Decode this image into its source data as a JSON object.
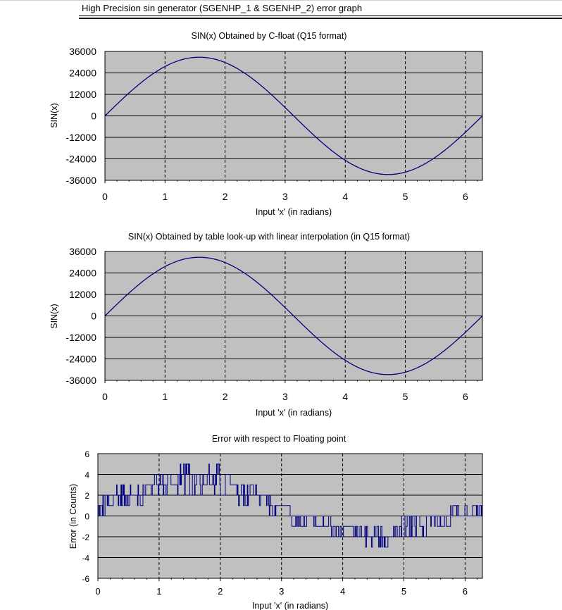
{
  "document": {
    "title": "High Precision sin generator (SGENHP_1 & SGENHP_2) error graph"
  },
  "colors": {
    "plot_background": "#c0c0c0",
    "series_line": "#000080",
    "grid_line": "#000000"
  },
  "chart_data": [
    {
      "type": "line",
      "title": "SIN(x) Obtained by C-float (Q15 format)",
      "xlabel": "Input 'x' (in radians)",
      "ylabel": "SIN(x)",
      "xlim": [
        0,
        6.2832
      ],
      "ylim": [
        -36000,
        36000
      ],
      "x_ticks": [
        0,
        1,
        2,
        3,
        4,
        5,
        6
      ],
      "y_ticks": [
        36000,
        24000,
        12000,
        0,
        -12000,
        -24000,
        -36000
      ],
      "grid": "horizontal solid, vertical dashed",
      "series": [
        {
          "function": "32767*sin(x)",
          "x": [
            0,
            0.785,
            1.571,
            2.356,
            3.142,
            3.927,
            4.712,
            5.498,
            6.283
          ],
          "y": [
            0,
            23170,
            32767,
            23170,
            0,
            -23170,
            -32767,
            -23170,
            0
          ]
        }
      ]
    },
    {
      "type": "line",
      "title": "SIN(x) Obtained by table look-up with linear interpolation (in Q15 format)",
      "xlabel": "Input 'x' (in radians)",
      "ylabel": "SIN(x)",
      "xlim": [
        0,
        6.2832
      ],
      "ylim": [
        -36000,
        36000
      ],
      "x_ticks": [
        0,
        1,
        2,
        3,
        4,
        5,
        6
      ],
      "y_ticks": [
        36000,
        24000,
        12000,
        0,
        -12000,
        -24000,
        -36000
      ],
      "grid": "horizontal solid, vertical dashed",
      "series": [
        {
          "function": "32767*sin(x)",
          "x": [
            0,
            0.785,
            1.571,
            2.356,
            3.142,
            3.927,
            4.712,
            5.498,
            6.283
          ],
          "y": [
            0,
            23170,
            32767,
            23170,
            0,
            -23170,
            -32767,
            -23170,
            0
          ]
        }
      ]
    },
    {
      "type": "line",
      "title": "Error with respect to Floating point",
      "xlabel": "Input 'x' (in radians)",
      "ylabel": "Error (in Counts)",
      "xlim": [
        0,
        6.2832
      ],
      "ylim": [
        -6,
        6
      ],
      "x_ticks": [
        0,
        1,
        2,
        3,
        4,
        5,
        6
      ],
      "y_ticks": [
        6,
        4,
        2,
        0,
        -2,
        -4,
        -6
      ],
      "grid": "horizontal solid, vertical dashed",
      "series": [
        {
          "description": "noisy integer error, approx",
          "x": [
            0,
            0.5,
            1.0,
            1.57,
            2.0,
            2.5,
            3.0,
            3.3,
            3.6,
            4.0,
            4.71,
            5.2,
            5.5,
            6.0,
            6.283
          ],
          "y_low": [
            0,
            1,
            2,
            2,
            2,
            1,
            0,
            -1,
            -1,
            -2,
            -3,
            -2,
            -1,
            0,
            0
          ],
          "y_high": [
            2,
            3,
            4,
            5,
            5,
            3,
            1,
            0,
            0,
            -1,
            -1,
            0,
            0,
            1,
            1
          ]
        }
      ]
    }
  ]
}
